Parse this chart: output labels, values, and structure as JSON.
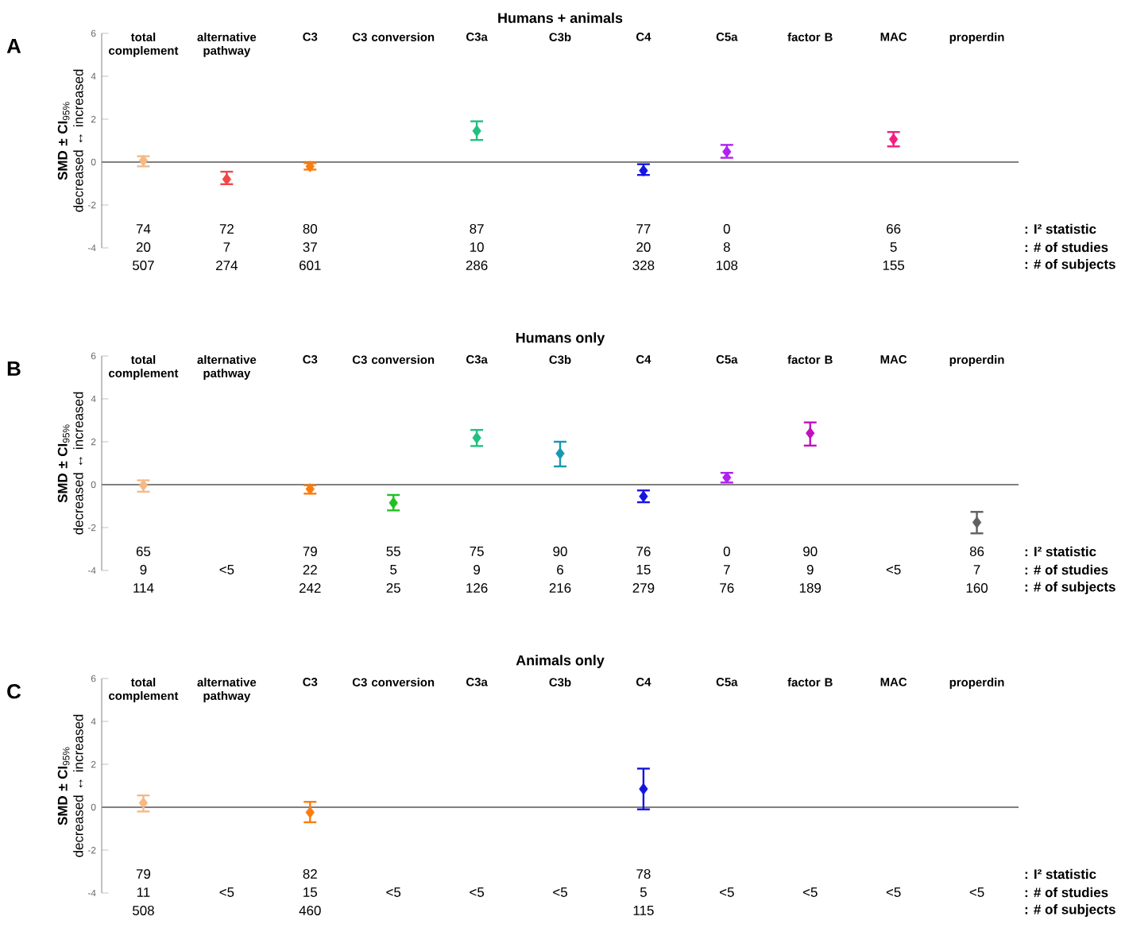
{
  "chart_data": [
    {
      "type": "scatter",
      "title": "Humans + animals",
      "ylabel": "**SMD ± CI**$_{95%}$ decreased ↔ increased",
      "categories": [
        "total complement",
        "alternative pathway",
        "C3",
        "C3 conversion",
        "C3a",
        "C3b",
        "C4",
        "C5a",
        "factor B",
        "MAC",
        "properdin"
      ],
      "values": [
        0.07,
        -0.8,
        -0.2,
        null,
        1.45,
        null,
        -0.4,
        0.48,
        null,
        1.06,
        null
      ],
      "errors": [
        [
          -0.2,
          0.27
        ],
        [
          -1.03,
          -0.45
        ],
        [
          -0.35,
          -0.05
        ],
        null,
        [
          1.03,
          1.9
        ],
        null,
        [
          -0.6,
          -0.1
        ],
        [
          0.2,
          0.8
        ],
        null,
        [
          0.73,
          1.4
        ],
        null
      ],
      "colors": [
        "#f5b987",
        "#f04848",
        "#fb7d10",
        "#20c020",
        "#20c080",
        "#1898b0",
        "#1515e0",
        "#b020f0",
        "#c010c0",
        "#f0207f",
        "#606060"
      ],
      "marker": "diamond",
      "ylim": [
        -4,
        6
      ],
      "yticks": [
        -4,
        -2,
        0,
        2,
        4,
        6
      ],
      "ref_lines": [
        {
          "axis": "y",
          "value": 0,
          "color": "#808080"
        }
      ],
      "annotations": [
        "A",
        "74",
        "72",
        "80",
        "87",
        "77",
        "0",
        "66",
        ": I² statistic",
        "20",
        "7",
        "37",
        "10",
        "20",
        "8",
        "5",
        ": # of studies",
        "507",
        "274",
        "601",
        "286",
        "328",
        "108",
        "155",
        ": # of subjects"
      ]
    },
    {
      "type": "scatter",
      "title": "Humans only",
      "ylabel": "**SMD ± CI**$_{95%}$ decreased ↔ increased",
      "categories": [
        "total complement",
        "alternative pathway",
        "C3",
        "C3 conversion",
        "C3a",
        "C3b",
        "C4",
        "C5a",
        "factor B",
        "MAC",
        "properdin"
      ],
      "values": [
        -0.03,
        null,
        -0.2,
        -0.85,
        2.18,
        1.45,
        -0.55,
        0.33,
        2.4,
        null,
        -1.76
      ],
      "errors": [
        [
          -0.33,
          0.2
        ],
        null,
        [
          -0.42,
          -0.03
        ],
        [
          -1.2,
          -0.48
        ],
        [
          1.8,
          2.55
        ],
        [
          0.85,
          2.0
        ],
        [
          -0.82,
          -0.27
        ],
        [
          0.1,
          0.55
        ],
        [
          1.82,
          2.9
        ],
        null,
        [
          -2.27,
          -1.27
        ]
      ],
      "colors": [
        "#f5b987",
        "#f04848",
        "#fb7d10",
        "#20c020",
        "#20c080",
        "#1898b0",
        "#1515e0",
        "#b020f0",
        "#c010c0",
        "#f0207f",
        "#606060"
      ],
      "marker": "diamond",
      "ylim": [
        -4,
        6
      ],
      "yticks": [
        -4,
        -2,
        0,
        2,
        4,
        6
      ],
      "ref_lines": [
        {
          "axis": "y",
          "value": 0,
          "color": "#808080"
        }
      ],
      "annotations": [
        "B",
        "65",
        "79",
        "55",
        "75",
        "90",
        "76",
        "0",
        "90",
        "86",
        ": I² statistic",
        "9",
        "<5",
        "22",
        "5",
        "9",
        "6",
        "15",
        "7",
        "9",
        "<5",
        "7",
        ": # of studies",
        "114",
        "242",
        "25",
        "126",
        "216",
        "279",
        "76",
        "189",
        "160",
        ": # of subjects"
      ]
    },
    {
      "type": "scatter",
      "title": "Animals only",
      "ylabel": "**SMD ± CI**$_{95%}$ decreased ↔ increased",
      "categories": [
        "total complement",
        "alternative pathway",
        "C3",
        "C3 conversion",
        "C3a",
        "C3b",
        "C4",
        "C5a",
        "factor B",
        "MAC",
        "properdin"
      ],
      "values": [
        0.2,
        null,
        -0.24,
        null,
        null,
        null,
        0.85,
        null,
        null,
        null,
        null
      ],
      "errors": [
        [
          -0.2,
          0.55
        ],
        null,
        [
          -0.7,
          0.25
        ],
        null,
        null,
        null,
        [
          -0.1,
          1.8
        ],
        null,
        null,
        null,
        null
      ],
      "colors": [
        "#f5b987",
        "#f04848",
        "#fb7d10",
        "#20c020",
        "#20c080",
        "#1898b0",
        "#1515e0",
        "#b020f0",
        "#c010c0",
        "#f0207f",
        "#606060"
      ],
      "marker": "diamond",
      "ylim": [
        -4,
        6
      ],
      "yticks": [
        -4,
        -2,
        0,
        2,
        4,
        6
      ],
      "ref_lines": [
        {
          "axis": "y",
          "value": 0,
          "color": "#808080"
        }
      ],
      "annotations": [
        "C",
        "79",
        "82",
        "78",
        ": I² statistic",
        "11",
        "<5",
        "15",
        "<5",
        "<5",
        "<5",
        "5",
        "<5",
        "<5",
        "<5",
        "<5",
        ": # of studies",
        "508",
        "460",
        "115",
        ": # of subjects"
      ]
    }
  ]
}
